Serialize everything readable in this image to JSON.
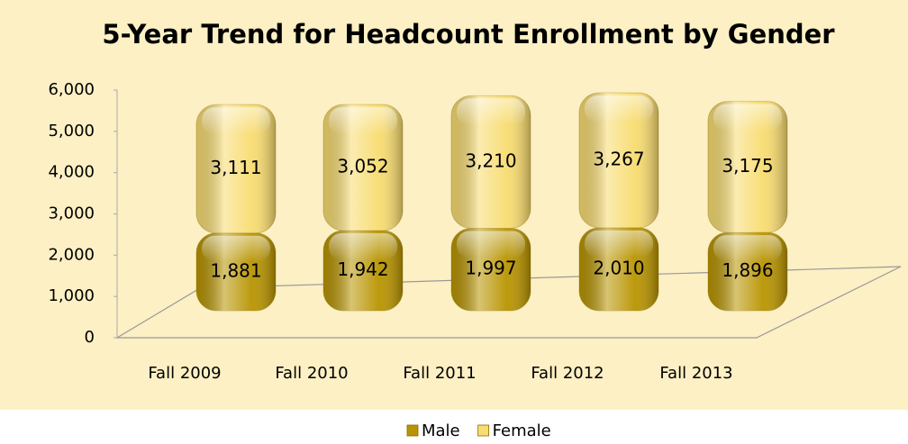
{
  "chart_data": {
    "type": "bar3d_stacked",
    "title": "5-Year Trend for Headcount Enrollment by Gender",
    "categories": [
      "Fall 2009",
      "Fall 2010",
      "Fall 2011",
      "Fall 2012",
      "Fall 2013"
    ],
    "series": [
      {
        "name": "Male",
        "color": "#b89400",
        "values": [
          1881,
          1942,
          1997,
          2010,
          1896
        ],
        "value_labels": [
          "1,881",
          "1,942",
          "1,997",
          "2,010",
          "1,896"
        ]
      },
      {
        "name": "Female",
        "color": "#f8dc70",
        "values": [
          3111,
          3052,
          3210,
          3267,
          3175
        ],
        "value_labels": [
          "3,111",
          "3,052",
          "3,210",
          "3,267",
          "3,175"
        ]
      }
    ],
    "ylim": [
      0,
      6000
    ],
    "yticks": [
      0,
      {
        "value": 1000,
        "label": "1,000"
      },
      {
        "value": 2000,
        "label": "2,000"
      },
      {
        "value": 3000,
        "label": "3,000"
      },
      {
        "value": 4000,
        "label": "4,000"
      },
      {
        "value": 5000,
        "label": "5,000"
      },
      {
        "value": 6000,
        "label": "6,000"
      }
    ],
    "stacked": true,
    "grid": false,
    "legend": "bottom"
  }
}
